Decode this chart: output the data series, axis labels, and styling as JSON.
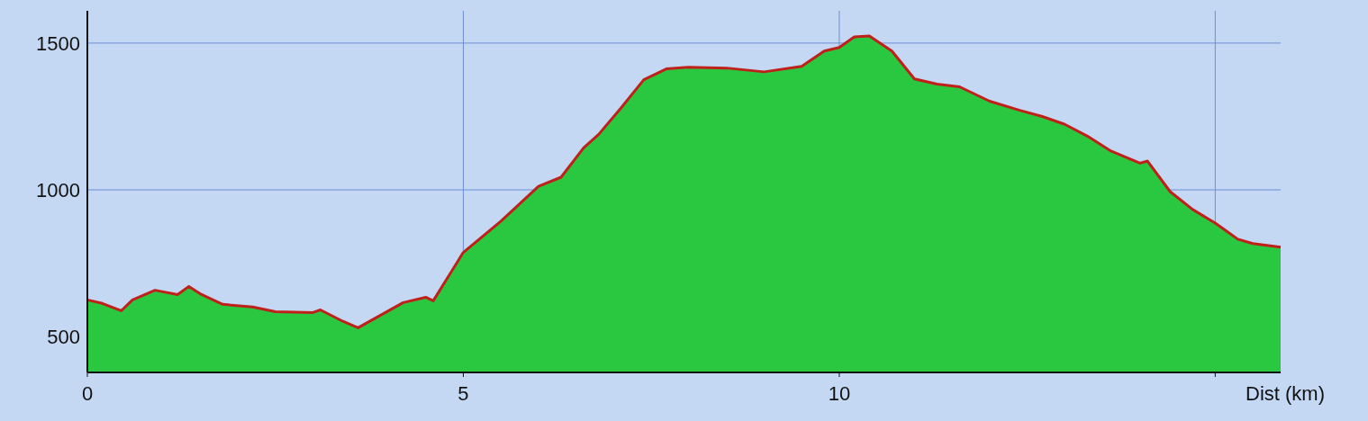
{
  "chart_data": {
    "type": "area",
    "xlabel": "Dist (km)",
    "x": [
      0,
      0.2,
      0.45,
      0.6,
      0.9,
      1.2,
      1.35,
      1.5,
      1.8,
      2.2,
      2.5,
      3.0,
      3.1,
      3.4,
      3.6,
      3.9,
      4.2,
      4.5,
      4.6,
      5.0,
      5.5,
      6.0,
      6.3,
      6.6,
      6.8,
      7.1,
      7.4,
      7.7,
      8.0,
      8.5,
      9.0,
      9.5,
      9.8,
      10.0,
      10.2,
      10.4,
      10.7,
      11.0,
      11.3,
      11.6,
      12.0,
      12.4,
      12.7,
      13.0,
      13.3,
      13.6,
      14.0,
      14.1,
      14.4,
      14.7,
      15.0,
      15.3,
      15.5,
      15.87
    ],
    "series": [
      {
        "color": "#2ac840",
        "values": [
          625,
          613,
          588,
          625,
          658,
          643,
          671,
          646,
          610,
          601,
          585,
          582,
          591,
          552,
          530,
          573,
          616,
          634,
          622,
          787,
          893,
          1012,
          1043,
          1143,
          1189,
          1280,
          1375,
          1412,
          1418,
          1415,
          1402,
          1421,
          1473,
          1485,
          1521,
          1524,
          1473,
          1378,
          1360,
          1351,
          1302,
          1271,
          1250,
          1223,
          1183,
          1134,
          1091,
          1098,
          994,
          933,
          887,
          832,
          817,
          805
        ]
      },
      {
        "type": "line",
        "color": "#c0201a",
        "values": [
          625,
          613,
          588,
          625,
          658,
          643,
          671,
          646,
          610,
          601,
          585,
          582,
          591,
          552,
          530,
          573,
          616,
          634,
          622,
          787,
          893,
          1012,
          1043,
          1143,
          1189,
          1280,
          1375,
          1412,
          1418,
          1415,
          1402,
          1421,
          1473,
          1485,
          1521,
          1524,
          1473,
          1378,
          1360,
          1351,
          1302,
          1271,
          1250,
          1223,
          1183,
          1134,
          1091,
          1098,
          994,
          933,
          887,
          832,
          817,
          805
        ]
      }
    ],
    "xlim": [
      0,
      15.87
    ],
    "ylim": [
      378,
      1610
    ],
    "xticks": [
      0,
      5,
      10,
      {
        "value": 15,
        "label": null
      }
    ],
    "yticks": [
      500,
      1000,
      1500
    ],
    "grid": true
  }
}
